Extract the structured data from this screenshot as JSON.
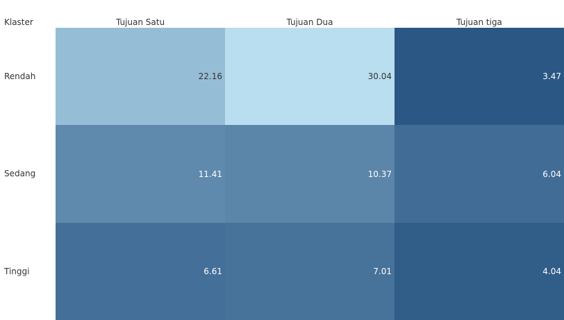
{
  "chart_data": {
    "type": "heatmap",
    "row_header_title": "Klaster",
    "columns": [
      "Tujuan Satu",
      "Tujuan Dua",
      "Tujuan tiga"
    ],
    "rows": [
      "Rendah",
      "Sedang",
      "Tinggi"
    ],
    "values": [
      [
        22.16,
        30.04,
        3.47
      ],
      [
        11.41,
        10.37,
        6.04
      ],
      [
        6.61,
        7.01,
        4.04
      ]
    ],
    "value_labels": [
      [
        "22.16",
        "30.04",
        "3.47"
      ],
      [
        "11.41",
        "10.37",
        "6.04"
      ],
      [
        "6.61",
        "7.01",
        "4.04"
      ]
    ],
    "color_scale": {
      "low": "#2a5784",
      "high": "#b9def0"
    },
    "text_colors": {
      "dark": "#333333",
      "light": "#ffffff"
    }
  }
}
